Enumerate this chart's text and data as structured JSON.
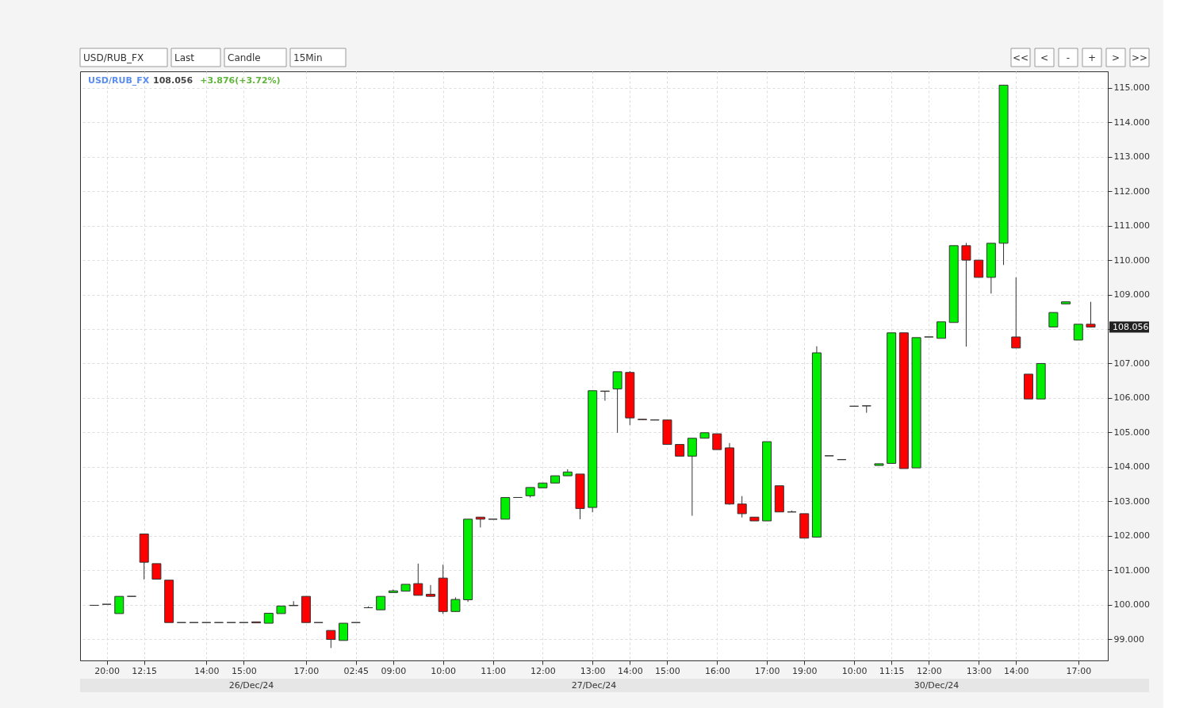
{
  "chart_data": {
    "type": "candlestick",
    "title": "USD/RUB_FX",
    "categories": [
      null,
      "20:00",
      null,
      null,
      "12:15",
      null,
      null,
      null,
      null,
      "14:00",
      null,
      null,
      "15:00",
      null,
      null,
      null,
      null,
      "17:00",
      null,
      null,
      null,
      "02:45",
      null,
      null,
      "09:00",
      null,
      null,
      null,
      "10:00",
      null,
      null,
      null,
      "11:00",
      null,
      null,
      null,
      "12:00",
      null,
      null,
      null,
      "13:00",
      null,
      null,
      "14:00",
      null,
      null,
      "15:00",
      null,
      null,
      null,
      "16:00",
      null,
      null,
      null,
      "17:00",
      null,
      null,
      "19:00",
      null,
      null,
      null,
      "10:00",
      null,
      null,
      "11:15",
      null,
      null,
      "12:00",
      null,
      null,
      null,
      "13:00",
      null,
      null,
      "14:00",
      null,
      null,
      null,
      null,
      "17:00",
      null
    ],
    "ohlc": [
      [
        99.98,
        99.98,
        99.98,
        99.98
      ],
      [
        100.01,
        100.01,
        100.01,
        100.01
      ],
      [
        99.74,
        100.24,
        99.74,
        100.24
      ],
      [
        100.24,
        100.24,
        100.24,
        100.24
      ],
      [
        102.05,
        102.05,
        100.73,
        101.23
      ],
      [
        101.19,
        101.19,
        100.74,
        100.74
      ],
      [
        100.71,
        100.71,
        99.48,
        99.48
      ],
      [
        99.48,
        99.48,
        99.48,
        99.48
      ],
      [
        99.48,
        99.48,
        99.48,
        99.48
      ],
      [
        99.48,
        99.48,
        99.48,
        99.48
      ],
      [
        99.48,
        99.48,
        99.48,
        99.48
      ],
      [
        99.48,
        99.48,
        99.48,
        99.48
      ],
      [
        99.48,
        99.48,
        99.48,
        99.48
      ],
      [
        99.5,
        99.5,
        99.47,
        99.47
      ],
      [
        99.46,
        99.75,
        99.46,
        99.75
      ],
      [
        99.74,
        99.96,
        99.74,
        99.96
      ],
      [
        99.97,
        100.1,
        99.97,
        99.98
      ],
      [
        100.24,
        100.24,
        99.48,
        99.48
      ],
      [
        99.48,
        99.48,
        99.48,
        99.48
      ],
      [
        99.25,
        99.25,
        98.74,
        98.99
      ],
      [
        98.96,
        99.46,
        98.96,
        99.46
      ],
      [
        99.48,
        99.48,
        99.48,
        99.48
      ],
      [
        99.91,
        99.95,
        99.91,
        99.91
      ],
      [
        99.85,
        100.24,
        99.85,
        100.24
      ],
      [
        100.35,
        100.44,
        100.35,
        100.4
      ],
      [
        100.39,
        100.59,
        100.39,
        100.59
      ],
      [
        100.61,
        101.19,
        100.27,
        100.27
      ],
      [
        100.3,
        100.57,
        100.24,
        100.24
      ],
      [
        100.77,
        101.16,
        99.73,
        99.8
      ],
      [
        99.8,
        100.21,
        99.8,
        100.15
      ],
      [
        100.14,
        102.48,
        100.08,
        102.48
      ],
      [
        102.54,
        102.54,
        102.24,
        102.48
      ],
      [
        102.48,
        102.48,
        102.48,
        102.48
      ],
      [
        102.48,
        103.11,
        102.48,
        103.11
      ],
      [
        103.11,
        103.11,
        103.11,
        103.11
      ],
      [
        103.16,
        103.4,
        103.11,
        103.4
      ],
      [
        103.39,
        103.53,
        103.39,
        103.53
      ],
      [
        103.53,
        103.74,
        103.53,
        103.74
      ],
      [
        103.74,
        103.93,
        103.74,
        103.85
      ],
      [
        103.79,
        103.79,
        102.48,
        102.79
      ],
      [
        102.82,
        106.21,
        102.68,
        106.21
      ],
      [
        106.2,
        106.2,
        105.92,
        106.19
      ],
      [
        106.26,
        106.76,
        104.99,
        106.76
      ],
      [
        106.74,
        106.78,
        105.21,
        105.42
      ],
      [
        105.38,
        105.38,
        105.37,
        105.37
      ],
      [
        105.36,
        105.36,
        105.36,
        105.36
      ],
      [
        105.36,
        105.36,
        104.65,
        104.65
      ],
      [
        104.65,
        104.65,
        104.31,
        104.31
      ],
      [
        104.31,
        104.83,
        102.58,
        104.83
      ],
      [
        104.83,
        104.99,
        104.83,
        104.99
      ],
      [
        104.96,
        104.96,
        104.5,
        104.5
      ],
      [
        104.55,
        104.69,
        102.9,
        102.92
      ],
      [
        102.92,
        103.15,
        102.53,
        102.64
      ],
      [
        102.54,
        102.54,
        102.43,
        102.43
      ],
      [
        102.43,
        104.73,
        102.43,
        104.73
      ],
      [
        103.45,
        103.45,
        102.69,
        102.69
      ],
      [
        102.69,
        102.73,
        102.69,
        102.69
      ],
      [
        102.64,
        102.64,
        101.93,
        101.93
      ],
      [
        101.96,
        107.5,
        101.96,
        107.31
      ],
      [
        104.32,
        104.32,
        104.32,
        104.32
      ],
      [
        104.21,
        104.21,
        104.21,
        104.21
      ],
      [
        105.76,
        105.76,
        105.76,
        105.76
      ],
      [
        105.77,
        105.77,
        105.57,
        105.77
      ],
      [
        104.04,
        104.09,
        104.04,
        104.09
      ],
      [
        104.1,
        107.89,
        104.1,
        107.89
      ],
      [
        107.89,
        107.89,
        103.95,
        103.95
      ],
      [
        103.97,
        107.75,
        103.97,
        107.75
      ],
      [
        107.77,
        107.77,
        107.77,
        107.77
      ],
      [
        107.73,
        108.21,
        107.73,
        108.21
      ],
      [
        108.19,
        110.42,
        108.19,
        110.42
      ],
      [
        110.42,
        110.5,
        107.49,
        110.0
      ],
      [
        110.0,
        110.0,
        109.5,
        109.5
      ],
      [
        109.5,
        110.49,
        109.03,
        110.49
      ],
      [
        110.49,
        115.08,
        109.86,
        115.08
      ],
      [
        107.77,
        109.5,
        107.45,
        107.45
      ],
      [
        106.69,
        106.69,
        105.97,
        105.97
      ],
      [
        105.97,
        107.0,
        105.97,
        107.0
      ],
      [
        108.06,
        108.48,
        108.06,
        108.48
      ],
      [
        108.73,
        108.79,
        108.73,
        108.79
      ],
      [
        107.68,
        108.14,
        107.68,
        108.14
      ],
      [
        108.14,
        108.79,
        108.056,
        108.056
      ]
    ],
    "colors": [
      "#333333",
      "#333333",
      "#00ee00",
      "#333333",
      "#ff0000",
      "#ff0000",
      "#ff0000",
      "#333333",
      "#333333",
      "#333333",
      "#333333",
      "#333333",
      "#333333",
      "#ff0000",
      "#00ee00",
      "#00ee00",
      "#ff0000",
      "#ff0000",
      "#333333",
      "#ff0000",
      "#00ee00",
      "#333333",
      "#333333",
      "#00ee00",
      "#00ee00",
      "#00ee00",
      "#ff0000",
      "#ff0000",
      "#ff0000",
      "#00ee00",
      "#00ee00",
      "#ff0000",
      "#333333",
      "#00ee00",
      "#333333",
      "#00ee00",
      "#00ee00",
      "#00ee00",
      "#00ee00",
      "#ff0000",
      "#00ee00",
      "#ff0000",
      "#00ee00",
      "#ff0000",
      "#ff0000",
      "#333333",
      "#ff0000",
      "#ff0000",
      "#00ee00",
      "#00ee00",
      "#ff0000",
      "#ff0000",
      "#ff0000",
      "#ff0000",
      "#00ee00",
      "#ff0000",
      "#333333",
      "#ff0000",
      "#00ee00",
      "#333333",
      "#333333",
      "#333333",
      "#333333",
      "#00ee00",
      "#00ee00",
      "#ff0000",
      "#00ee00",
      "#333333",
      "#00ee00",
      "#00ee00",
      "#ff0000",
      "#ff0000",
      "#00ee00",
      "#00ee00",
      "#ff0000",
      "#ff0000",
      "#00ee00",
      "#00ee00",
      "#00ee00",
      "#00ee00",
      "#ff0000"
    ],
    "ylim": [
      98.38,
      115.48
    ],
    "yticks": [
      {
        "value": 99,
        "label": "99.000"
      },
      {
        "value": 100,
        "label": "100.000"
      },
      {
        "value": 101,
        "label": "101.000"
      },
      {
        "value": 102,
        "label": "102.000"
      },
      {
        "value": 103,
        "label": "103.000"
      },
      {
        "value": 104,
        "label": "104.000"
      },
      {
        "value": 105,
        "label": "105.000"
      },
      {
        "value": 106,
        "label": "106.000"
      },
      {
        "value": 107,
        "label": "107.000"
      },
      {
        "value": 108,
        "label": null
      },
      {
        "value": 109,
        "label": "109.000"
      },
      {
        "value": 110,
        "label": "110.000"
      },
      {
        "value": 111,
        "label": "111.000"
      },
      {
        "value": 112,
        "label": "112.000"
      },
      {
        "value": 113,
        "label": "113.000"
      },
      {
        "value": 114,
        "label": "114.000"
      },
      {
        "value": 115,
        "label": "115.000"
      }
    ],
    "annotations": [
      "26/Dec/24",
      "27/Dec/24",
      "30/Dec/24",
      "108.056",
      "+3.876(+3.72%)",
      "USD/RUB_FX",
      "Last",
      "Candle",
      "15Min",
      "<<",
      "<",
      "-",
      "+",
      ">",
      ">>",
      "108.056"
    ],
    "grid": true
  }
}
